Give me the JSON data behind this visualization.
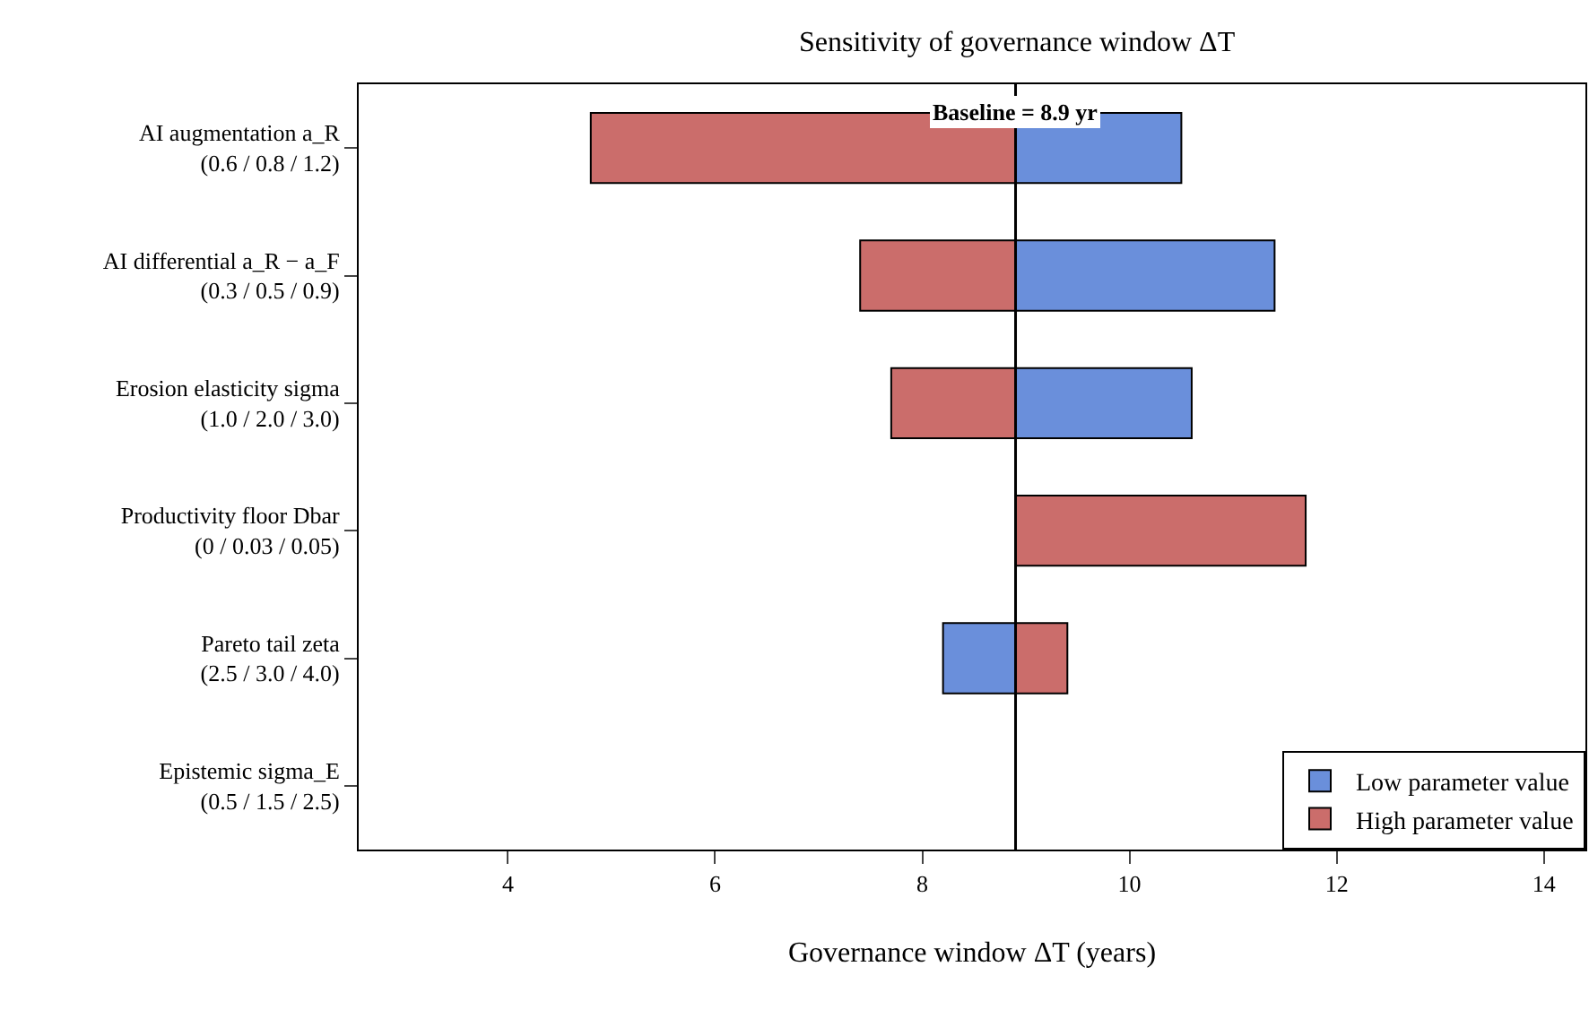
{
  "chart_data": {
    "type": "bar",
    "orientation": "horizontal",
    "title": "Sensitivity of governance window ΔT",
    "xlabel": "Governance window ΔT (years)",
    "categories": [
      "AI augmentation a_R\n(0.6 / 0.8 / 1.2)",
      "AI differential a_R − a_F\n(0.3 / 0.5 / 0.9)",
      "Erosion elasticity sigma\n(1.0 / 2.0 / 3.0)",
      "Productivity floor Dbar\n(0 / 0.03 / 0.05)",
      "Pareto tail zeta\n(2.5 / 3.0 / 4.0)",
      "Epistemic sigma_E\n(0.5 / 1.5 / 2.5)"
    ],
    "series": [
      {
        "name": "Low parameter value",
        "color": "#6a8fdb",
        "base": [
          8.9,
          8.9,
          8.9,
          null,
          8.2,
          null
        ],
        "values": [
          1.6,
          2.5,
          1.7,
          null,
          0.7,
          null
        ]
      },
      {
        "name": "High parameter value",
        "color": "#cb6d6b",
        "base": [
          4.8,
          7.4,
          7.7,
          8.9,
          8.9,
          null
        ],
        "values": [
          4.1,
          1.5,
          1.2,
          2.8,
          0.5,
          null
        ]
      }
    ],
    "xlim": [
      2.56,
      14.4
    ],
    "xticks": [
      4,
      6,
      8,
      10,
      12,
      14
    ],
    "ref_lines": [
      {
        "axis": "x",
        "value": 8.9,
        "label": "Baseline = 8.9 yr",
        "color": "#000000"
      }
    ],
    "legend": "bottom right"
  }
}
